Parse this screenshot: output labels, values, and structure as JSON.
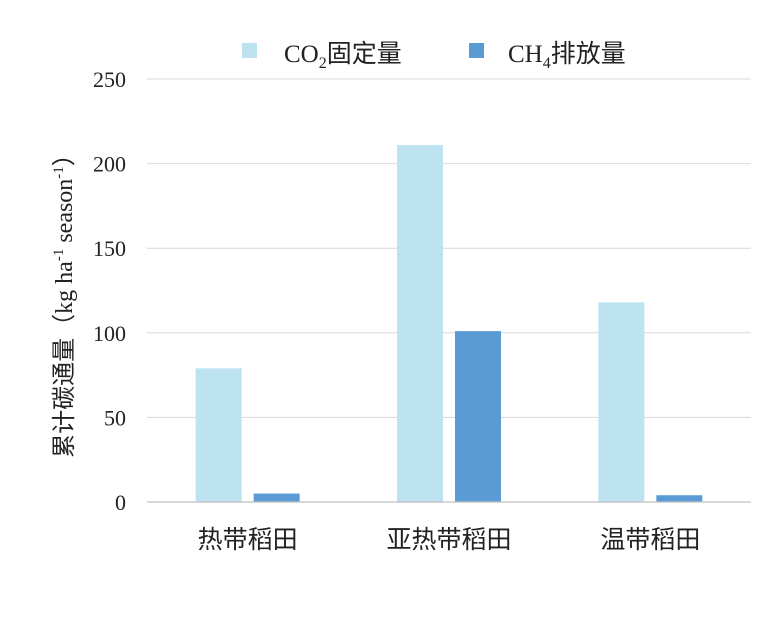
{
  "chart_data": {
    "type": "bar",
    "categories": [
      "热带稻田",
      "亚热带稻田",
      "温带稻田"
    ],
    "series": [
      {
        "name_parts": [
          "CO",
          "2",
          "固定量"
        ],
        "color": "#bde3f0",
        "values": [
          79,
          211,
          118
        ]
      },
      {
        "name_parts": [
          "CH",
          "4",
          "排放量"
        ],
        "color": "#5b9bd5",
        "values": [
          5,
          101,
          4
        ]
      }
    ],
    "ylabel_parts": [
      "累计碳通量（kg ha",
      "-1",
      " season",
      "-1",
      "）"
    ],
    "ylim": [
      0,
      250
    ],
    "yticks": [
      "0",
      "50",
      "100",
      "150",
      "200",
      "250"
    ],
    "grid": true,
    "legend_position": "top"
  }
}
